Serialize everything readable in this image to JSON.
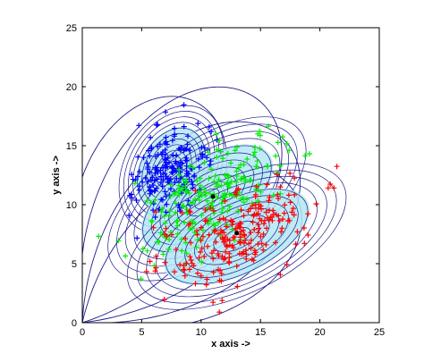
{
  "chart_data": {
    "type": "scatter",
    "title": "",
    "xlabel": "x axis ->",
    "ylabel": "y axis ->",
    "xlim": [
      0,
      25
    ],
    "ylim": [
      0,
      25
    ],
    "xticks": [
      0,
      5,
      10,
      15,
      20,
      25
    ],
    "yticks": [
      0,
      5,
      10,
      15,
      20,
      25
    ],
    "grid": false,
    "legend": "none",
    "marker": "+",
    "colors": {
      "cluster_blue": "#0000ff",
      "cluster_green": "#00ee00",
      "cluster_red": "#ff0000",
      "contour": "#1c1c8c",
      "fill": "#b3e7f4"
    },
    "clusters": [
      {
        "color": "cluster_blue",
        "center": [
          7.5,
          13.0
        ],
        "spread": [
          1.4,
          2.0
        ],
        "rotation_deg": 62,
        "count": 190
      },
      {
        "color": "cluster_green",
        "center": [
          10.5,
          10.5
        ],
        "spread": [
          1.7,
          3.4
        ],
        "rotation_deg": 36,
        "count": 220
      },
      {
        "color": "cluster_red",
        "center": [
          13.0,
          7.3
        ],
        "spread": [
          1.7,
          3.5
        ],
        "rotation_deg": 26,
        "count": 230
      }
    ],
    "cluster_means": [
      [
        11.0,
        10.7
      ],
      [
        13.0,
        7.6
      ]
    ],
    "outer_contours": [
      {
        "max_distance": 21.0,
        "direction_deg": 63
      },
      {
        "max_distance": 24.0,
        "direction_deg": 52
      },
      {
        "max_distance": 23.0,
        "direction_deg": 42
      },
      {
        "max_distance": 21.0,
        "direction_deg": 32
      }
    ]
  }
}
